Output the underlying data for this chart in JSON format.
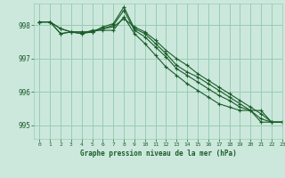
{
  "title": "Graphe pression niveau de la mer (hPa)",
  "background_color": "#cce8dc",
  "grid_color": "#99ccb3",
  "line_color": "#1a5c2a",
  "xlim": [
    -0.5,
    23
  ],
  "ylim": [
    994.6,
    998.65
  ],
  "yticks": [
    995,
    996,
    997,
    998
  ],
  "xticks": [
    0,
    1,
    2,
    3,
    4,
    5,
    6,
    7,
    8,
    9,
    10,
    11,
    12,
    13,
    14,
    15,
    16,
    17,
    18,
    19,
    20,
    21,
    22,
    23
  ],
  "series": [
    [
      998.1,
      998.1,
      997.9,
      997.8,
      997.8,
      997.8,
      997.95,
      998.05,
      998.55,
      997.9,
      997.75,
      997.45,
      997.15,
      996.8,
      996.6,
      996.45,
      996.25,
      996.05,
      995.85,
      995.65,
      995.45,
      995.1,
      995.1,
      995.1
    ],
    [
      998.1,
      998.1,
      997.9,
      997.8,
      997.8,
      997.8,
      997.9,
      998.0,
      998.45,
      997.85,
      997.65,
      997.35,
      997.05,
      996.7,
      996.5,
      996.3,
      996.1,
      995.9,
      995.75,
      995.55,
      995.45,
      995.2,
      995.1,
      995.1
    ],
    [
      998.1,
      998.1,
      997.75,
      997.8,
      997.75,
      997.85,
      997.85,
      997.85,
      998.25,
      997.75,
      997.45,
      997.1,
      996.75,
      996.5,
      996.25,
      996.05,
      995.85,
      995.65,
      995.55,
      995.45,
      995.45,
      995.45,
      995.1,
      995.1
    ],
    [
      998.1,
      998.1,
      997.75,
      997.8,
      997.75,
      997.8,
      997.9,
      997.95,
      998.2,
      997.95,
      997.8,
      997.55,
      997.25,
      997.0,
      996.8,
      996.55,
      996.35,
      996.15,
      995.95,
      995.75,
      995.55,
      995.35,
      995.1,
      995.1
    ]
  ]
}
